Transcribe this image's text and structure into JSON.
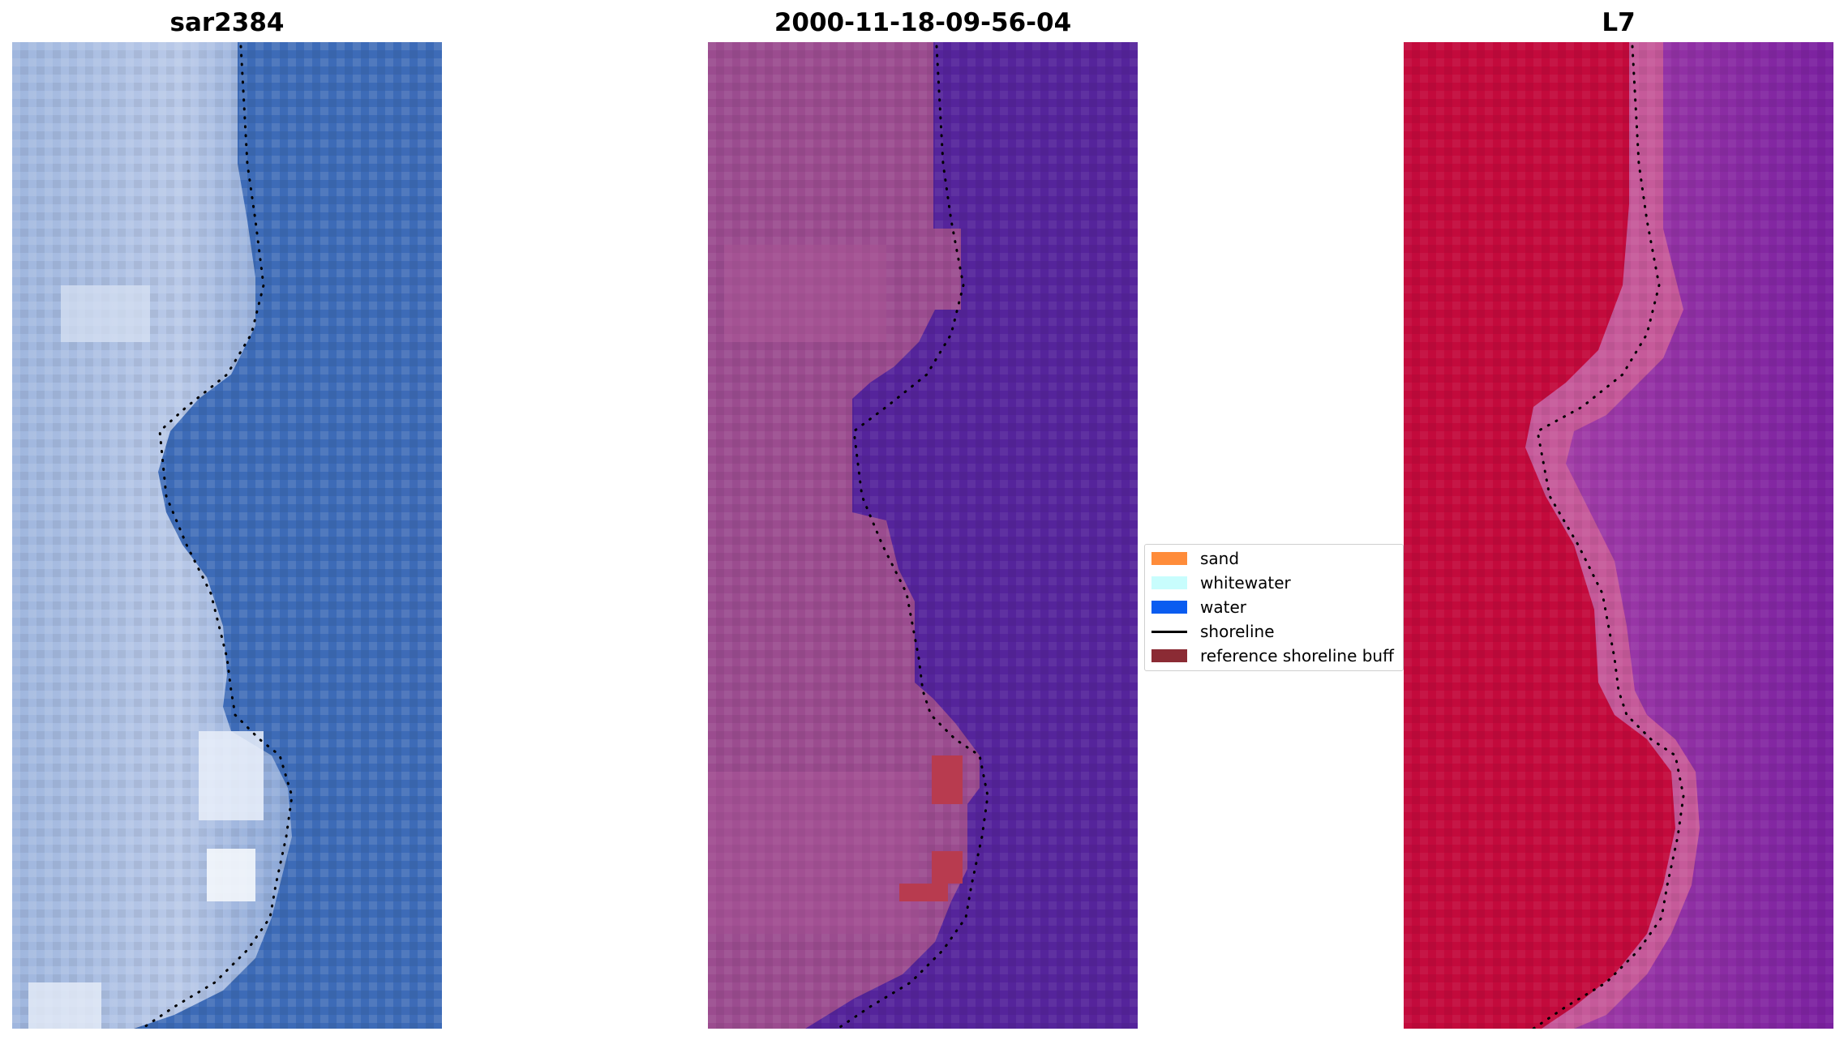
{
  "panels": [
    {
      "title": "sar2384"
    },
    {
      "title": "2000-11-18-09-56-04"
    },
    {
      "title": "L7"
    }
  ],
  "legend": {
    "items": [
      {
        "label": "sand",
        "kind": "patch",
        "color": "#ff8c3a"
      },
      {
        "label": "whitewater",
        "kind": "patch",
        "color": "#c8fdfd"
      },
      {
        "label": "water",
        "kind": "patch",
        "color": "#0a5cf0"
      },
      {
        "label": "shoreline",
        "kind": "line",
        "color": "#000000"
      },
      {
        "label": "reference shoreline buff",
        "kind": "patch",
        "color": "#8b2b34"
      }
    ]
  },
  "colors": {
    "rgb_land": "#a9bde0",
    "rgb_water": "#3d6bb7",
    "class_land": "#9b4c8f",
    "class_water": "#55249b",
    "class_buffer": "#b83b4f",
    "ndwi_land": "#c30a3c",
    "ndwi_water": "#8a2ba0",
    "ndwi_edge": "#c65a9a"
  }
}
